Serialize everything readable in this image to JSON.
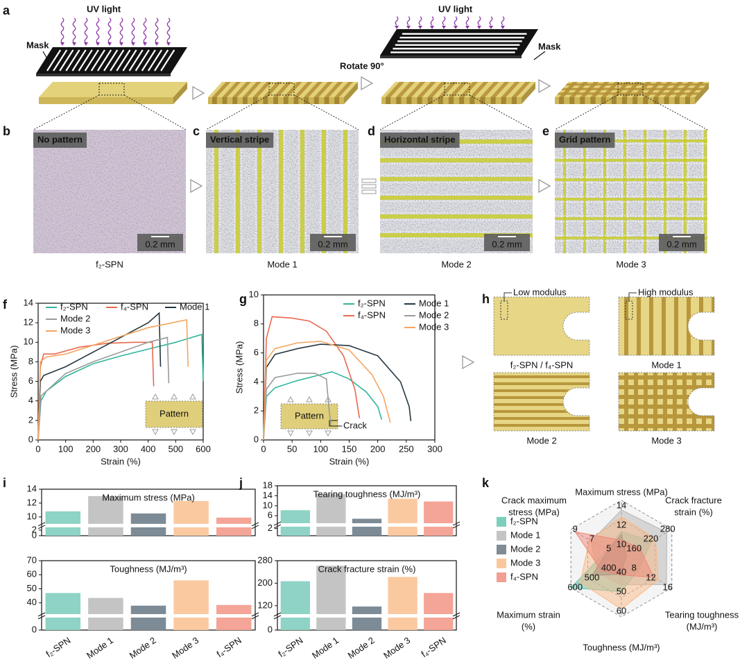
{
  "panel_letters": [
    "a",
    "b",
    "c",
    "d",
    "e",
    "f",
    "g",
    "h",
    "i",
    "j",
    "k"
  ],
  "panel_a": {
    "uv_light": [
      "UV light",
      "UV light"
    ],
    "mask": [
      "Mask",
      "Mask"
    ],
    "rotate": "Rotate 90°"
  },
  "micrographs": [
    {
      "label": "No pattern",
      "scale": "0.2 mm",
      "caption": "f₂-SPN"
    },
    {
      "label": "Vertical stripe",
      "scale": "0.2 mm",
      "caption": "Mode 1"
    },
    {
      "label": "Horizontal stripe",
      "scale": "0.2 mm",
      "caption": "Mode 2"
    },
    {
      "label": "Grid pattern",
      "scale": "0.2 mm",
      "caption": "Mode 3"
    }
  ],
  "panel_h": {
    "low": "Low modulus",
    "high": "High modulus",
    "captions": [
      "f₂-SPN / f₄-SPN",
      "Mode 1",
      "Mode 2",
      "Mode 3"
    ]
  },
  "chart_data": [
    {
      "type": "line",
      "x_label": "Strain (%)",
      "y_label": "Stress (MPa)",
      "xlim": [
        0,
        600
      ],
      "xticks": [
        0,
        100,
        200,
        300,
        400,
        500,
        600
      ],
      "ylim": [
        0,
        14
      ],
      "yticks": [
        0,
        2,
        4,
        6,
        8,
        10,
        12,
        14
      ],
      "inset": [
        "Pattern"
      ],
      "series": [
        {
          "name": "f₂-SPN",
          "color": "#2fb59b",
          "x": [
            0,
            10,
            30,
            100,
            200,
            300,
            400,
            500,
            595,
            600
          ],
          "values": [
            0,
            4,
            5,
            6.5,
            7.8,
            8.6,
            9.3,
            10,
            10.8,
            6
          ]
        },
        {
          "name": "f₄-SPN",
          "color": "#e9684f",
          "x": [
            0,
            8,
            20,
            60,
            150,
            250,
            350,
            415,
            420
          ],
          "values": [
            0,
            7.5,
            8.8,
            8.8,
            9.5,
            9.9,
            10,
            10,
            5.5
          ]
        },
        {
          "name": "Mode 1",
          "color": "#243640",
          "x": [
            0,
            8,
            20,
            100,
            200,
            300,
            400,
            440,
            445
          ],
          "values": [
            0,
            6,
            6.6,
            7.5,
            9,
            10.5,
            12,
            13,
            7.5
          ]
        },
        {
          "name": "Mode 2",
          "color": "#9a9a9a",
          "x": [
            0,
            10,
            30,
            100,
            200,
            300,
            400,
            470,
            475
          ],
          "values": [
            0,
            4.5,
            5,
            6.8,
            8,
            9,
            10,
            10.5,
            5.8
          ]
        },
        {
          "name": "Mode 3",
          "color": "#f6a45e",
          "x": [
            0,
            8,
            30,
            100,
            200,
            300,
            400,
            540,
            545
          ],
          "values": [
            0,
            8,
            8.5,
            8.8,
            9.7,
            10.6,
            11.5,
            12.3,
            7.5
          ]
        }
      ]
    },
    {
      "type": "line",
      "x_label": "Strain (%)",
      "y_label": "Stress (MPa)",
      "xlim": [
        0,
        300
      ],
      "xticks": [
        0,
        50,
        100,
        150,
        200,
        250,
        300
      ],
      "ylim": [
        0,
        10
      ],
      "yticks": [
        0,
        2,
        4,
        6,
        8,
        10
      ],
      "inset": [
        "Pattern",
        "Crack"
      ],
      "series": [
        {
          "name": "f₂-SPN",
          "color": "#2fb59b",
          "x": [
            0,
            5,
            20,
            60,
            100,
            120,
            150,
            180,
            200,
            207
          ],
          "values": [
            0,
            3,
            3.6,
            4.1,
            4.5,
            4.7,
            4.2,
            3.3,
            2.3,
            1.4
          ]
        },
        {
          "name": "f₄-SPN",
          "color": "#e9684f",
          "x": [
            0,
            5,
            15,
            50,
            80,
            110,
            140,
            160,
            168
          ],
          "values": [
            0,
            7,
            8.5,
            8.4,
            8.2,
            7.5,
            5.8,
            3.5,
            1.5
          ]
        },
        {
          "name": "Mode 1",
          "color": "#243640",
          "x": [
            0,
            5,
            20,
            60,
            100,
            150,
            200,
            240,
            255,
            258
          ],
          "values": [
            0,
            5,
            5.9,
            6.3,
            6.6,
            6.5,
            5.8,
            4,
            2.3,
            1.3
          ]
        },
        {
          "name": "Mode 2",
          "color": "#9a9a9a",
          "x": [
            0,
            5,
            20,
            60,
            90,
            110,
            115,
            118
          ],
          "values": [
            0,
            3.5,
            4.3,
            4.6,
            4.6,
            4.2,
            2,
            1
          ]
        },
        {
          "name": "Mode 3",
          "color": "#f6a45e",
          "x": [
            0,
            5,
            20,
            60,
            100,
            150,
            190,
            210,
            222
          ],
          "values": [
            0,
            5.5,
            6.3,
            6.7,
            6.8,
            6.2,
            4.5,
            3,
            1.2
          ]
        }
      ]
    },
    {
      "type": "broken_bar",
      "title": "Maximum stress (MPa)",
      "values": [
        10.8,
        13,
        10.5,
        12.3,
        9.9
      ],
      "colors": [
        "#8ed3c5",
        "#c4c4c4",
        "#7c8b95",
        "#fbc9a0",
        "#f4a597"
      ],
      "ylim": [
        0,
        14
      ],
      "ybreak": [
        3,
        9
      ],
      "yticks": [
        0,
        2,
        10,
        12,
        14
      ]
    },
    {
      "type": "broken_bar",
      "title": "Toughness (MJ/m³)",
      "categories": [
        "f₂-SPN",
        "Mode 1",
        "Mode 2",
        "Mode 3",
        "f₄-SPN"
      ],
      "values": [
        47,
        43.5,
        38,
        56,
        38.5
      ],
      "colors": [
        "#8ed3c5",
        "#c4c4c4",
        "#7c8b95",
        "#fbc9a0",
        "#f4a597"
      ],
      "ylim": [
        0,
        70
      ],
      "ybreak": [
        5,
        32
      ],
      "yticks": [
        0,
        40,
        50,
        60,
        70
      ]
    },
    {
      "type": "broken_bar",
      "title": "Tearing toughness (MJ/m³)",
      "values": [
        8.2,
        14.7,
        4.8,
        12.8,
        11.7
      ],
      "colors": [
        "#8ed3c5",
        "#c4c4c4",
        "#7c8b95",
        "#fbc9a0",
        "#f4a597"
      ],
      "ylim": [
        0,
        18
      ],
      "ybreak": [
        2.5,
        3
      ],
      "yticks": [
        2,
        6,
        10,
        14,
        18
      ]
    },
    {
      "type": "broken_bar",
      "title": "Crack fracture strain (%)",
      "categories": [
        "f₂-SPN",
        "Mode 1",
        "Mode 2",
        "Mode 3",
        "f₄-SPN"
      ],
      "values": [
        207,
        262,
        117,
        222,
        165
      ],
      "colors": [
        "#8ed3c5",
        "#c4c4c4",
        "#7c8b95",
        "#fbc9a0",
        "#f4a597"
      ],
      "ylim": [
        0,
        280
      ],
      "ybreak": [
        10,
        90
      ],
      "yticks": [
        0,
        120,
        200,
        280
      ]
    },
    {
      "type": "radar",
      "axes": [
        {
          "name": [
            "Maximum stress (MPa)"
          ],
          "range": [
            8,
            14
          ],
          "ticks": [
            10,
            12,
            14
          ]
        },
        {
          "name": [
            "Crack fracture",
            "strain (%)"
          ],
          "range": [
            100,
            280
          ],
          "ticks": [
            160,
            220,
            280
          ]
        },
        {
          "name": [
            "Tearing toughness",
            "(MJ/m³)"
          ],
          "range": [
            4,
            16
          ],
          "ticks": [
            8,
            12,
            16
          ]
        },
        {
          "name": [
            "Toughness (MJ/m³)"
          ],
          "range": [
            30,
            60
          ],
          "ticks": [
            40,
            50,
            60
          ]
        },
        {
          "name": [
            "Maximum strain",
            "(%)"
          ],
          "range": [
            300,
            600
          ],
          "ticks": [
            400,
            500,
            600
          ]
        },
        {
          "name": [
            "Crack maximum",
            "stress (MPa)"
          ],
          "range": [
            3,
            9
          ],
          "ticks": [
            5,
            7,
            9
          ]
        }
      ],
      "series": [
        {
          "name": "f₂-SPN",
          "color": "#5cc3ad",
          "values": [
            10.8,
            207,
            8.2,
            47,
            600,
            4.7
          ]
        },
        {
          "name": "Mode 1",
          "color": "#b5b5b5",
          "values": [
            13,
            262,
            14.7,
            43.5,
            445,
            6.6
          ]
        },
        {
          "name": "Mode 2",
          "color": "#5f6f7a",
          "values": [
            10.5,
            117,
            4.8,
            38,
            475,
            4.6
          ]
        },
        {
          "name": "Mode 3",
          "color": "#f9b985",
          "values": [
            12.3,
            222,
            12.8,
            56,
            545,
            6.8
          ]
        },
        {
          "name": "f₄-SPN",
          "color": "#ef8677",
          "values": [
            9.9,
            165,
            11.7,
            38.5,
            420,
            8.5
          ]
        }
      ]
    }
  ]
}
